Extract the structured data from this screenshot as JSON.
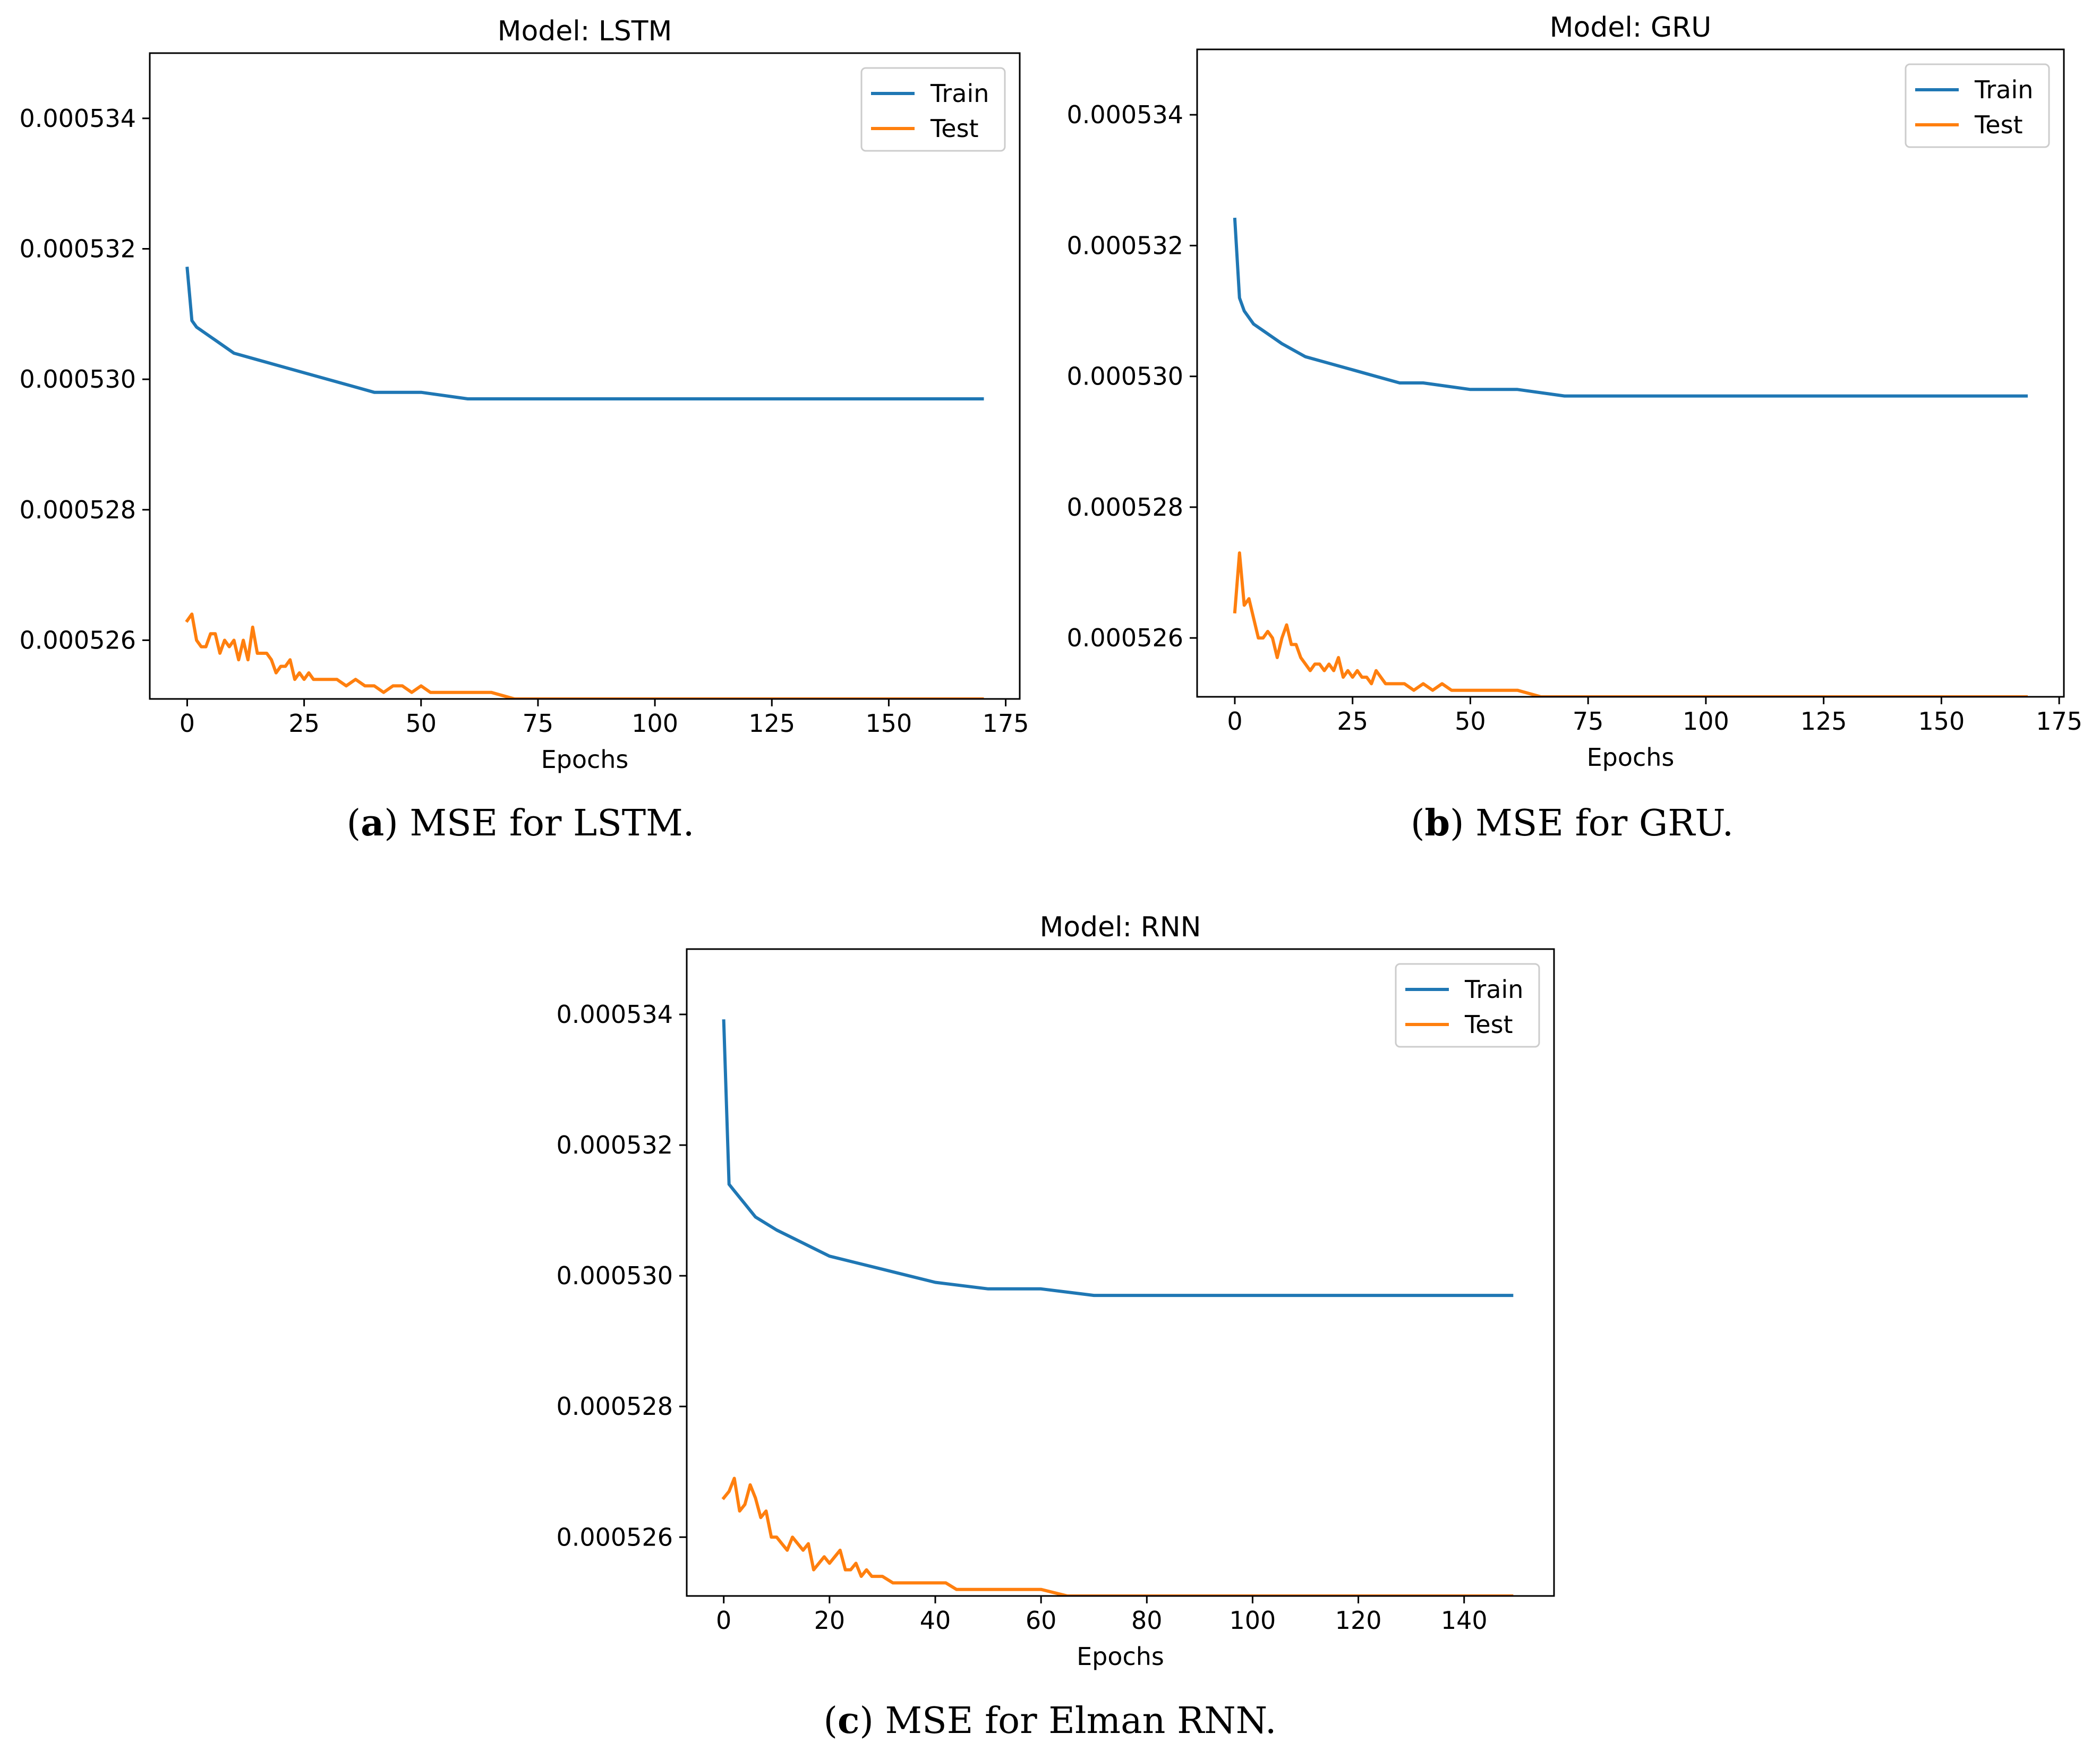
{
  "chart_data": [
    {
      "id": "lstm",
      "type": "line",
      "title": "Model: LSTM",
      "xlabel": "Epochs",
      "ylabel": "",
      "xlim": [
        -8,
        178
      ],
      "ylim": [
        0.0005251,
        0.000535
      ],
      "xticks": [
        0,
        25,
        50,
        75,
        100,
        125,
        150,
        175
      ],
      "xtick_labels": [
        "0",
        "25",
        "50",
        "75",
        "100",
        "125",
        "150",
        "175"
      ],
      "yticks": [
        0.000526,
        0.000528,
        0.00053,
        0.000532,
        0.000534
      ],
      "ytick_labels": [
        "0.000526",
        "0.000528",
        "0.000530",
        "0.000532",
        "0.000534"
      ],
      "legend": "top-right",
      "grid": false,
      "last_epoch": 170,
      "series": [
        {
          "name": "Train",
          "color": "#1f77b4",
          "x": [
            0,
            1,
            2,
            4,
            6,
            10,
            15,
            20,
            25,
            30,
            35,
            40,
            50,
            60,
            70,
            80,
            90,
            100,
            110,
            120,
            130,
            140,
            150,
            160,
            170
          ],
          "y": [
            0.0005317,
            0.0005309,
            0.0005308,
            0.0005307,
            0.0005306,
            0.0005304,
            0.0005303,
            0.0005302,
            0.0005301,
            0.00053,
            0.0005299,
            0.0005298,
            0.0005298,
            0.0005297,
            0.0005297,
            0.0005297,
            0.0005297,
            0.0005297,
            0.0005297,
            0.0005297,
            0.0005297,
            0.0005297,
            0.0005297,
            0.0005297,
            0.0005297
          ]
        },
        {
          "name": "Test",
          "color": "#ff7f0e",
          "x": [
            0,
            1,
            2,
            3,
            4,
            5,
            6,
            7,
            8,
            9,
            10,
            11,
            12,
            13,
            14,
            15,
            16,
            17,
            18,
            19,
            20,
            21,
            22,
            23,
            24,
            25,
            26,
            27,
            28,
            29,
            30,
            32,
            34,
            36,
            38,
            40,
            42,
            44,
            46,
            48,
            50,
            52,
            55,
            58,
            60,
            65,
            70,
            75,
            80,
            90,
            100,
            110,
            120,
            130,
            140,
            150,
            160,
            170
          ],
          "y": [
            0.0005263,
            0.0005264,
            0.000526,
            0.0005259,
            0.0005259,
            0.0005261,
            0.0005261,
            0.0005258,
            0.000526,
            0.0005259,
            0.000526,
            0.0005257,
            0.000526,
            0.0005257,
            0.0005262,
            0.0005258,
            0.0005258,
            0.0005258,
            0.0005257,
            0.0005255,
            0.0005256,
            0.0005256,
            0.0005257,
            0.0005254,
            0.0005255,
            0.0005254,
            0.0005255,
            0.0005254,
            0.0005254,
            0.0005254,
            0.0005254,
            0.0005254,
            0.0005253,
            0.0005254,
            0.0005253,
            0.0005253,
            0.0005252,
            0.0005253,
            0.0005253,
            0.0005252,
            0.0005253,
            0.0005252,
            0.0005252,
            0.0005252,
            0.0005252,
            0.0005252,
            0.0005251,
            0.0005251,
            0.0005251,
            0.0005251,
            0.0005251,
            0.0005251,
            0.0005251,
            0.0005251,
            0.0005251,
            0.0005251,
            0.0005251,
            0.0005251
          ]
        }
      ]
    },
    {
      "id": "gru",
      "type": "line",
      "title": "Model: GRU",
      "xlabel": "Epochs",
      "ylabel": "",
      "xlim": [
        -8,
        176
      ],
      "ylim": [
        0.0005251,
        0.000535
      ],
      "xticks": [
        0,
        25,
        50,
        75,
        100,
        125,
        150,
        175
      ],
      "xtick_labels": [
        "0",
        "25",
        "50",
        "75",
        "100",
        "125",
        "150",
        "175"
      ],
      "yticks": [
        0.000526,
        0.000528,
        0.00053,
        0.000532,
        0.000534
      ],
      "ytick_labels": [
        "0.000526",
        "0.000528",
        "0.000530",
        "0.000532",
        "0.000534"
      ],
      "legend": "top-right",
      "grid": false,
      "last_epoch": 168,
      "series": [
        {
          "name": "Train",
          "color": "#1f77b4",
          "x": [
            0,
            1,
            2,
            4,
            6,
            10,
            15,
            20,
            25,
            30,
            35,
            40,
            50,
            60,
            70,
            80,
            90,
            100,
            110,
            120,
            130,
            140,
            150,
            160,
            168
          ],
          "y": [
            0.0005324,
            0.0005312,
            0.000531,
            0.0005308,
            0.0005307,
            0.0005305,
            0.0005303,
            0.0005302,
            0.0005301,
            0.00053,
            0.0005299,
            0.0005299,
            0.0005298,
            0.0005298,
            0.0005297,
            0.0005297,
            0.0005297,
            0.0005297,
            0.0005297,
            0.0005297,
            0.0005297,
            0.0005297,
            0.0005297,
            0.0005297,
            0.0005297
          ]
        },
        {
          "name": "Test",
          "color": "#ff7f0e",
          "x": [
            0,
            1,
            2,
            3,
            4,
            5,
            6,
            7,
            8,
            9,
            10,
            11,
            12,
            13,
            14,
            15,
            16,
            17,
            18,
            19,
            20,
            21,
            22,
            23,
            24,
            25,
            26,
            27,
            28,
            29,
            30,
            32,
            34,
            36,
            38,
            40,
            42,
            44,
            46,
            48,
            50,
            52,
            55,
            58,
            60,
            65,
            70,
            75,
            80,
            90,
            100,
            110,
            120,
            130,
            140,
            150,
            160,
            168
          ],
          "y": [
            0.0005264,
            0.0005273,
            0.0005265,
            0.0005266,
            0.0005263,
            0.000526,
            0.000526,
            0.0005261,
            0.000526,
            0.0005257,
            0.000526,
            0.0005262,
            0.0005259,
            0.0005259,
            0.0005257,
            0.0005256,
            0.0005255,
            0.0005256,
            0.0005256,
            0.0005255,
            0.0005256,
            0.0005255,
            0.0005257,
            0.0005254,
            0.0005255,
            0.0005254,
            0.0005255,
            0.0005254,
            0.0005254,
            0.0005253,
            0.0005255,
            0.0005253,
            0.0005253,
            0.0005253,
            0.0005252,
            0.0005253,
            0.0005252,
            0.0005253,
            0.0005252,
            0.0005252,
            0.0005252,
            0.0005252,
            0.0005252,
            0.0005252,
            0.0005252,
            0.0005251,
            0.0005251,
            0.0005251,
            0.0005251,
            0.0005251,
            0.0005251,
            0.0005251,
            0.0005251,
            0.0005251,
            0.0005251,
            0.0005251,
            0.0005251,
            0.0005251
          ]
        }
      ]
    },
    {
      "id": "rnn",
      "type": "line",
      "title": "Model: RNN",
      "xlabel": "Epochs",
      "ylabel": "",
      "xlim": [
        -7,
        157
      ],
      "ylim": [
        0.0005251,
        0.000535
      ],
      "xticks": [
        0,
        20,
        40,
        60,
        80,
        100,
        120,
        140
      ],
      "xtick_labels": [
        "0",
        "20",
        "40",
        "60",
        "80",
        "100",
        "120",
        "140"
      ],
      "yticks": [
        0.000526,
        0.000528,
        0.00053,
        0.000532,
        0.000534
      ],
      "ytick_labels": [
        "0.000526",
        "0.000528",
        "0.000530",
        "0.000532",
        "0.000534"
      ],
      "legend": "top-right",
      "grid": false,
      "last_epoch": 149,
      "series": [
        {
          "name": "Train",
          "color": "#1f77b4",
          "x": [
            0,
            1,
            2,
            4,
            6,
            10,
            15,
            20,
            25,
            30,
            35,
            40,
            50,
            60,
            70,
            80,
            90,
            100,
            110,
            120,
            130,
            140,
            149
          ],
          "y": [
            0.0005339,
            0.0005314,
            0.0005313,
            0.0005311,
            0.0005309,
            0.0005307,
            0.0005305,
            0.0005303,
            0.0005302,
            0.0005301,
            0.00053,
            0.0005299,
            0.0005298,
            0.0005298,
            0.0005297,
            0.0005297,
            0.0005297,
            0.0005297,
            0.0005297,
            0.0005297,
            0.0005297,
            0.0005297,
            0.0005297
          ]
        },
        {
          "name": "Test",
          "color": "#ff7f0e",
          "x": [
            0,
            1,
            2,
            3,
            4,
            5,
            6,
            7,
            8,
            9,
            10,
            11,
            12,
            13,
            14,
            15,
            16,
            17,
            18,
            19,
            20,
            21,
            22,
            23,
            24,
            25,
            26,
            27,
            28,
            29,
            30,
            32,
            34,
            36,
            38,
            40,
            42,
            44,
            46,
            48,
            50,
            55,
            60,
            65,
            70,
            80,
            90,
            100,
            110,
            120,
            130,
            140,
            149
          ],
          "y": [
            0.0005266,
            0.0005267,
            0.0005269,
            0.0005264,
            0.0005265,
            0.0005268,
            0.0005266,
            0.0005263,
            0.0005264,
            0.000526,
            0.000526,
            0.0005259,
            0.0005258,
            0.000526,
            0.0005259,
            0.0005258,
            0.0005259,
            0.0005255,
            0.0005256,
            0.0005257,
            0.0005256,
            0.0005257,
            0.0005258,
            0.0005255,
            0.0005255,
            0.0005256,
            0.0005254,
            0.0005255,
            0.0005254,
            0.0005254,
            0.0005254,
            0.0005253,
            0.0005253,
            0.0005253,
            0.0005253,
            0.0005253,
            0.0005253,
            0.0005252,
            0.0005252,
            0.0005252,
            0.0005252,
            0.0005252,
            0.0005252,
            0.0005251,
            0.0005251,
            0.0005251,
            0.0005251,
            0.0005251,
            0.0005251,
            0.0005251,
            0.0005251,
            0.0005251,
            0.0005251
          ]
        }
      ]
    }
  ],
  "captions": {
    "a": {
      "letter": "a",
      "text": ") MSE for LSTM."
    },
    "b": {
      "letter": "b",
      "text": ") MSE for GRU."
    },
    "c": {
      "letter": "c",
      "text": ") MSE for Elman RNN."
    }
  }
}
